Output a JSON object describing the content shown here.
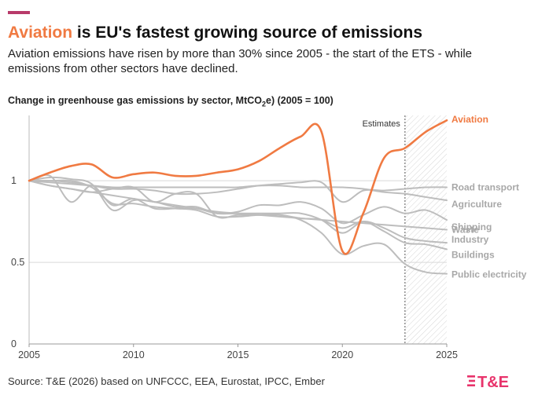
{
  "header": {
    "title_highlight": "Aviation",
    "title_rest": " is EU's fastest growing source of emissions",
    "subtitle": "Aviation emissions have risen by more than 30% since 2005 - the start of the ETS - while emissions from other sectors have declined.",
    "chart_title_main": "Change in greenhouse gas emissions by sector, MtCO",
    "chart_title_sub": "2",
    "chart_title_end": "e) (2005 = 100)"
  },
  "footer": {
    "source": "Source: T&E (2026) based on UNFCCC, EEA, Eurostat, IPCC, Ember",
    "logo_text": "T&E"
  },
  "colors": {
    "aviation": "#f07a42",
    "other": "#bdbdbd",
    "accent": "#b83a6a",
    "logo": "#e8336b"
  },
  "chart_data": {
    "type": "line",
    "xlim": [
      2005,
      2025
    ],
    "ylim": [
      0,
      1.4
    ],
    "x_ticks": [
      "2005",
      "2010",
      "2015",
      "2020",
      "2025"
    ],
    "y_ticks": [
      "0",
      "0.5",
      "1"
    ],
    "estimates_range": [
      2023,
      2025
    ],
    "estimates_label": "Estimates",
    "series": [
      {
        "name": "Aviation",
        "highlight": true,
        "x": [
          2005,
          2006,
          2007,
          2008,
          2009,
          2010,
          2011,
          2012,
          2013,
          2014,
          2015,
          2016,
          2017,
          2018,
          2019,
          2020,
          2021,
          2022,
          2023,
          2024,
          2025
        ],
        "y": [
          1.0,
          1.05,
          1.09,
          1.1,
          1.02,
          1.04,
          1.05,
          1.03,
          1.03,
          1.05,
          1.07,
          1.12,
          1.2,
          1.27,
          1.3,
          0.57,
          0.8,
          1.14,
          1.2,
          1.3,
          1.37
        ]
      },
      {
        "name": "Road transport",
        "x": [
          2005,
          2006,
          2007,
          2008,
          2009,
          2010,
          2011,
          2012,
          2013,
          2014,
          2015,
          2016,
          2017,
          2018,
          2019,
          2020,
          2021,
          2022,
          2023,
          2024,
          2025
        ],
        "y": [
          1.0,
          1.0,
          0.99,
          0.97,
          0.95,
          0.95,
          0.94,
          0.92,
          0.92,
          0.93,
          0.95,
          0.97,
          0.98,
          0.99,
          0.99,
          0.87,
          0.94,
          0.94,
          0.95,
          0.96,
          0.96
        ]
      },
      {
        "name": "Agriculture",
        "x": [
          2005,
          2006,
          2007,
          2008,
          2009,
          2010,
          2011,
          2012,
          2013,
          2014,
          2015,
          2016,
          2017,
          2018,
          2019,
          2020,
          2021,
          2022,
          2023,
          2024,
          2025
        ],
        "y": [
          1.0,
          0.99,
          0.98,
          0.97,
          0.96,
          0.96,
          0.96,
          0.96,
          0.96,
          0.96,
          0.96,
          0.97,
          0.97,
          0.96,
          0.96,
          0.96,
          0.95,
          0.93,
          0.92,
          0.9,
          0.88
        ]
      },
      {
        "name": "Shipping",
        "x": [
          2005,
          2006,
          2007,
          2008,
          2009,
          2010,
          2011,
          2012,
          2013,
          2014,
          2015,
          2016,
          2017,
          2018,
          2019,
          2020,
          2021,
          2022,
          2023,
          2024,
          2025
        ],
        "y": [
          1.0,
          1.03,
          0.87,
          0.97,
          0.85,
          0.89,
          0.83,
          0.83,
          0.83,
          0.8,
          0.81,
          0.85,
          0.85,
          0.87,
          0.83,
          0.74,
          0.79,
          0.84,
          0.8,
          0.82,
          0.76
        ]
      },
      {
        "name": "Waste",
        "x": [
          2005,
          2006,
          2007,
          2008,
          2009,
          2010,
          2011,
          2012,
          2013,
          2014,
          2015,
          2016,
          2017,
          2018,
          2019,
          2020,
          2021,
          2022,
          2023,
          2024,
          2025
        ],
        "y": [
          1.0,
          0.97,
          0.95,
          0.93,
          0.91,
          0.89,
          0.87,
          0.85,
          0.83,
          0.81,
          0.8,
          0.79,
          0.78,
          0.77,
          0.76,
          0.75,
          0.74,
          0.73,
          0.72,
          0.71,
          0.7
        ]
      },
      {
        "name": "Industry",
        "x": [
          2005,
          2006,
          2007,
          2008,
          2009,
          2010,
          2011,
          2012,
          2013,
          2014,
          2015,
          2016,
          2017,
          2018,
          2019,
          2020,
          2021,
          2022,
          2023,
          2024,
          2025
        ],
        "y": [
          1.0,
          1.02,
          1.01,
          0.98,
          0.82,
          0.88,
          0.87,
          0.84,
          0.84,
          0.8,
          0.8,
          0.8,
          0.8,
          0.8,
          0.76,
          0.68,
          0.75,
          0.71,
          0.65,
          0.63,
          0.62
        ]
      },
      {
        "name": "Buildings",
        "x": [
          2005,
          2006,
          2007,
          2008,
          2009,
          2010,
          2011,
          2012,
          2013,
          2014,
          2015,
          2016,
          2017,
          2018,
          2019,
          2020,
          2021,
          2022,
          2023,
          2024,
          2025
        ],
        "y": [
          1.0,
          0.97,
          0.95,
          0.93,
          0.95,
          0.96,
          0.87,
          0.92,
          0.92,
          0.78,
          0.79,
          0.79,
          0.79,
          0.77,
          0.76,
          0.71,
          0.75,
          0.69,
          0.62,
          0.61,
          0.58
        ]
      },
      {
        "name": "Public electricity",
        "x": [
          2005,
          2006,
          2007,
          2008,
          2009,
          2010,
          2011,
          2012,
          2013,
          2014,
          2015,
          2016,
          2017,
          2018,
          2019,
          2020,
          2021,
          2022,
          2023,
          2024,
          2025
        ],
        "y": [
          1.0,
          1.0,
          1.0,
          0.96,
          0.86,
          0.86,
          0.84,
          0.83,
          0.82,
          0.78,
          0.78,
          0.79,
          0.79,
          0.76,
          0.68,
          0.55,
          0.6,
          0.61,
          0.49,
          0.44,
          0.43
        ]
      }
    ]
  }
}
